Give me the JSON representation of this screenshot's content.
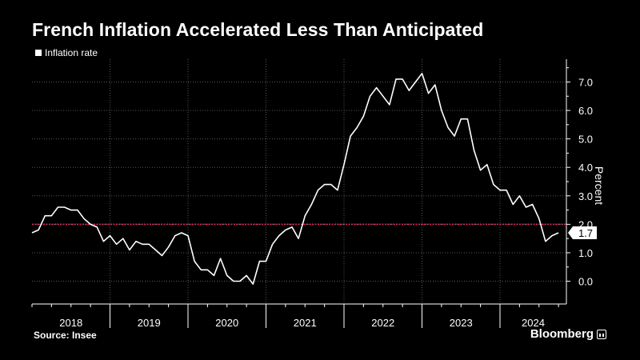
{
  "title": "French Inflation Accelerated Less Than Anticipated",
  "legend_label": "Inflation rate",
  "source": "Source: Insee",
  "brand": "Bloomberg",
  "colors": {
    "background": "#000000",
    "line": "#ffffff",
    "reference": "#e0306a",
    "grid": "#555555"
  },
  "chart_data": {
    "type": "line",
    "title": "French Inflation Accelerated Less Than Anticipated",
    "ylabel": "Percent",
    "ylim": [
      -0.8,
      7.8
    ],
    "y_ticks": [
      "0.0",
      "1.0",
      "2.0",
      "3.0",
      "4.0",
      "5.0",
      "6.0",
      "7.0"
    ],
    "x_tick_labels": [
      "2018",
      "2019",
      "2020",
      "2021",
      "2022",
      "2023",
      "2024"
    ],
    "x_range": [
      "2018-01",
      "2024-06"
    ],
    "reference_line": 2.0,
    "last_value_label": "1.7",
    "series": [
      {
        "name": "Inflation rate",
        "points": [
          [
            "2018-01",
            1.7
          ],
          [
            "2018-02",
            1.8
          ],
          [
            "2018-03",
            2.3
          ],
          [
            "2018-04",
            2.3
          ],
          [
            "2018-05",
            2.6
          ],
          [
            "2018-06",
            2.6
          ],
          [
            "2018-07",
            2.5
          ],
          [
            "2018-08",
            2.5
          ],
          [
            "2018-09",
            2.2
          ],
          [
            "2018-10",
            2.0
          ],
          [
            "2018-11",
            1.9
          ],
          [
            "2018-12",
            1.4
          ],
          [
            "2019-01",
            1.6
          ],
          [
            "2019-02",
            1.3
          ],
          [
            "2019-03",
            1.5
          ],
          [
            "2019-04",
            1.1
          ],
          [
            "2019-05",
            1.4
          ],
          [
            "2019-06",
            1.3
          ],
          [
            "2019-07",
            1.3
          ],
          [
            "2019-08",
            1.1
          ],
          [
            "2019-09",
            0.9
          ],
          [
            "2019-10",
            1.2
          ],
          [
            "2019-11",
            1.6
          ],
          [
            "2019-12",
            1.7
          ],
          [
            "2020-01",
            1.6
          ],
          [
            "2020-02",
            0.7
          ],
          [
            "2020-03",
            0.4
          ],
          [
            "2020-04",
            0.4
          ],
          [
            "2020-05",
            0.2
          ],
          [
            "2020-06",
            0.8
          ],
          [
            "2020-07",
            0.2
          ],
          [
            "2020-08",
            0.0
          ],
          [
            "2020-09",
            0.0
          ],
          [
            "2020-10",
            0.2
          ],
          [
            "2020-11",
            -0.1
          ],
          [
            "2020-12",
            0.7
          ],
          [
            "2021-01",
            0.7
          ],
          [
            "2021-02",
            1.3
          ],
          [
            "2021-03",
            1.6
          ],
          [
            "2021-04",
            1.8
          ],
          [
            "2021-05",
            1.9
          ],
          [
            "2021-06",
            1.5
          ],
          [
            "2021-07",
            2.3
          ],
          [
            "2021-08",
            2.7
          ],
          [
            "2021-09",
            3.2
          ],
          [
            "2021-10",
            3.4
          ],
          [
            "2021-11",
            3.4
          ],
          [
            "2021-12",
            3.2
          ],
          [
            "2022-01",
            4.1
          ],
          [
            "2022-02",
            5.1
          ],
          [
            "2022-03",
            5.4
          ],
          [
            "2022-04",
            5.8
          ],
          [
            "2022-05",
            6.5
          ],
          [
            "2022-06",
            6.8
          ],
          [
            "2022-07",
            6.5
          ],
          [
            "2022-08",
            6.2
          ],
          [
            "2022-09",
            7.1
          ],
          [
            "2022-10",
            7.1
          ],
          [
            "2022-11",
            6.7
          ],
          [
            "2022-12",
            7.0
          ],
          [
            "2023-01",
            7.3
          ],
          [
            "2023-02",
            6.6
          ],
          [
            "2023-03",
            6.9
          ],
          [
            "2023-04",
            6.0
          ],
          [
            "2023-05",
            5.4
          ],
          [
            "2023-06",
            5.1
          ],
          [
            "2023-07",
            5.7
          ],
          [
            "2023-08",
            5.7
          ],
          [
            "2023-09",
            4.6
          ],
          [
            "2023-10",
            3.9
          ],
          [
            "2023-11",
            4.1
          ],
          [
            "2023-12",
            3.4
          ],
          [
            "2024-01",
            3.2
          ],
          [
            "2024-02",
            3.2
          ],
          [
            "2024-03",
            2.7
          ],
          [
            "2024-04",
            3.0
          ],
          [
            "2024-05",
            2.6
          ],
          [
            "2024-06",
            2.7
          ],
          [
            "2024-07",
            2.2
          ],
          [
            "2024-08",
            1.4
          ],
          [
            "2024-09",
            1.6
          ],
          [
            "2024-10",
            1.7
          ]
        ]
      }
    ]
  }
}
